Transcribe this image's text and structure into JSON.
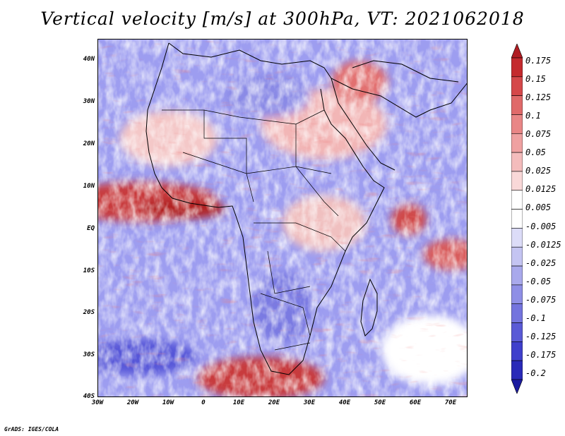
{
  "title": "Vertical velocity [m/s] at 300hPa, VT: 2021062018",
  "credit": "GrADS: IGES/COLA",
  "map": {
    "lat_labels": [
      "40N",
      "30N",
      "20N",
      "10N",
      "EQ",
      "10S",
      "20S",
      "30S",
      "40S"
    ],
    "lon_labels": [
      "30W",
      "20W",
      "10W",
      "0",
      "10E",
      "20E",
      "30E",
      "40E",
      "50E",
      "60E",
      "70E"
    ],
    "field_description_hidden": "",
    "colors": {
      "positive": "#c0282a",
      "negative": "#3535c8",
      "neutral": "#ffffff"
    }
  },
  "legend": {
    "labels": [
      "0.175",
      "0.15",
      "0.125",
      "0.1",
      "0.075",
      "0.05",
      "0.025",
      "0.0125",
      "0.005",
      "-0.005",
      "-0.0125",
      "-0.025",
      "-0.05",
      "-0.075",
      "-0.1",
      "-0.125",
      "-0.175",
      "-0.2"
    ],
    "colors": [
      "#b01c22",
      "#c42a2e",
      "#d5484a",
      "#e06a6a",
      "#e98686",
      "#efa1a1",
      "#f4bcbc",
      "#f9d8d8",
      "#ffffff",
      "#ffffff",
      "#dcdcf8",
      "#c4c4f2",
      "#a9a9ec",
      "#8f8fe6",
      "#7474de",
      "#5a5ad6",
      "#3f3fcc",
      "#2a2ab8",
      "#1c1ca0"
    ]
  }
}
